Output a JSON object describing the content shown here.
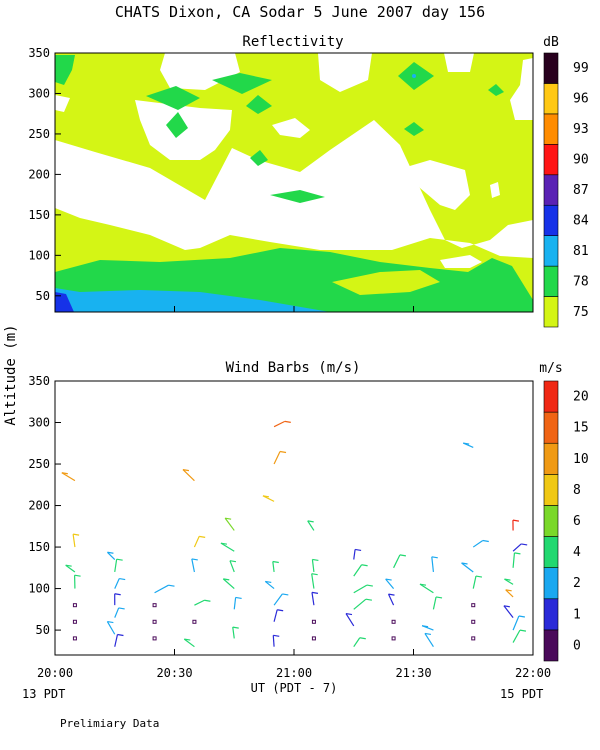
{
  "title": "CHATS Dixon, CA  Sodar   5 June 2007  day 156",
  "ylabel": "Altitude (m)",
  "xlabel": "UT  (PDT - 7)",
  "date_left": "13 PDT",
  "date_right": "15 PDT",
  "footer": "Prelimiary Data",
  "colors": {
    "r75": "#d4f515",
    "r78": "#22d84a",
    "r81": "#18b2f0",
    "r84": "#1632e8",
    "r87": "#5a22b4",
    "r90": "#ff1414",
    "r93": "#ff8c00",
    "r96": "#ffc814",
    "r99": "#28001e",
    "w0": "#4a0a5a",
    "w1": "#2a2ad8",
    "w2": "#1aa8f0",
    "w4": "#22d870",
    "w6": "#7ad82a",
    "w8": "#f0c814",
    "w10": "#f09a14",
    "w15": "#f06414",
    "w20": "#f02814"
  },
  "chart_data": [
    {
      "type": "heatmap",
      "title": "Reflectivity",
      "colorbar_label": "dB",
      "colorbar_ticks": [
        "75",
        "78",
        "81",
        "84",
        "87",
        "90",
        "93",
        "96",
        "99"
      ],
      "y_ticks": [
        "50",
        "100",
        "150",
        "200",
        "250",
        "300",
        "350"
      ],
      "ylim": [
        30,
        350
      ],
      "xlim": [
        "20:00",
        "22:00"
      ]
    },
    {
      "type": "scatter",
      "title": "Wind Barbs (m/s)",
      "colorbar_label": "m/s",
      "colorbar_ticks": [
        "0",
        "1",
        "2",
        "4",
        "6",
        "8",
        "10",
        "15",
        "20"
      ],
      "y_ticks": [
        "50",
        "100",
        "150",
        "200",
        "250",
        "300",
        "350"
      ],
      "x_ticks": [
        "20:00",
        "20:30",
        "21:00",
        "21:30",
        "22:00"
      ],
      "ylim": [
        20,
        350
      ],
      "xlim": [
        "20:00",
        "22:00"
      ],
      "columns": [
        {
          "t": "20:05",
          "levels": [
            {
              "h": 40,
              "c": "w0"
            },
            {
              "h": 60,
              "c": "w0"
            },
            {
              "h": 80,
              "c": "w0"
            },
            {
              "h": 100,
              "c": "w4"
            },
            {
              "h": 120,
              "c": "w4"
            },
            {
              "h": 150,
              "c": "w8"
            },
            {
              "h": 230,
              "c": "w10"
            }
          ]
        },
        {
          "t": "20:15",
          "levels": [
            {
              "h": 30,
              "c": "w1"
            },
            {
              "h": 45,
              "c": "w2"
            },
            {
              "h": 65,
              "c": "w2"
            },
            {
              "h": 80,
              "c": "w1"
            },
            {
              "h": 100,
              "c": "w2"
            },
            {
              "h": 120,
              "c": "w4"
            },
            {
              "h": 135,
              "c": "w2"
            }
          ]
        },
        {
          "t": "20:25",
          "levels": [
            {
              "h": 40,
              "c": "w0"
            },
            {
              "h": 60,
              "c": "w0"
            },
            {
              "h": 80,
              "c": "w0"
            },
            {
              "h": 95,
              "c": "w2"
            }
          ]
        },
        {
          "t": "20:35",
          "levels": [
            {
              "h": 30,
              "c": "w4"
            },
            {
              "h": 60,
              "c": "w0"
            },
            {
              "h": 80,
              "c": "w4"
            },
            {
              "h": 120,
              "c": "w2"
            },
            {
              "h": 150,
              "c": "w8"
            },
            {
              "h": 230,
              "c": "w10"
            }
          ]
        },
        {
          "t": "20:45",
          "levels": [
            {
              "h": 40,
              "c": "w4"
            },
            {
              "h": 75,
              "c": "w2"
            },
            {
              "h": 100,
              "c": "w4"
            },
            {
              "h": 120,
              "c": "w4"
            },
            {
              "h": 145,
              "c": "w4"
            },
            {
              "h": 170,
              "c": "w6"
            }
          ]
        },
        {
          "t": "20:55",
          "levels": [
            {
              "h": 30,
              "c": "w1"
            },
            {
              "h": 60,
              "c": "w1"
            },
            {
              "h": 80,
              "c": "w2"
            },
            {
              "h": 100,
              "c": "w2"
            },
            {
              "h": 120,
              "c": "w4"
            },
            {
              "h": 205,
              "c": "w8"
            },
            {
              "h": 250,
              "c": "w10"
            },
            {
              "h": 295,
              "c": "w15"
            }
          ]
        },
        {
          "t": "21:05",
          "levels": [
            {
              "h": 40,
              "c": "w0"
            },
            {
              "h": 60,
              "c": "w0"
            },
            {
              "h": 80,
              "c": "w1"
            },
            {
              "h": 100,
              "c": "w4"
            },
            {
              "h": 120,
              "c": "w4"
            },
            {
              "h": 170,
              "c": "w4"
            }
          ]
        },
        {
          "t": "21:15",
          "levels": [
            {
              "h": 30,
              "c": "w4"
            },
            {
              "h": 55,
              "c": "w1"
            },
            {
              "h": 75,
              "c": "w4"
            },
            {
              "h": 95,
              "c": "w4"
            },
            {
              "h": 115,
              "c": "w4"
            },
            {
              "h": 135,
              "c": "w1"
            }
          ]
        },
        {
          "t": "21:25",
          "levels": [
            {
              "h": 40,
              "c": "w0"
            },
            {
              "h": 60,
              "c": "w0"
            },
            {
              "h": 80,
              "c": "w1"
            },
            {
              "h": 100,
              "c": "w2"
            },
            {
              "h": 125,
              "c": "w4"
            }
          ]
        },
        {
          "t": "21:35",
          "levels": [
            {
              "h": 30,
              "c": "w2"
            },
            {
              "h": 50,
              "c": "w2"
            },
            {
              "h": 75,
              "c": "w4"
            },
            {
              "h": 95,
              "c": "w4"
            },
            {
              "h": 120,
              "c": "w2"
            }
          ]
        },
        {
          "t": "21:45",
          "levels": [
            {
              "h": 40,
              "c": "w0"
            },
            {
              "h": 60,
              "c": "w0"
            },
            {
              "h": 80,
              "c": "w0"
            },
            {
              "h": 100,
              "c": "w4"
            },
            {
              "h": 120,
              "c": "w2"
            },
            {
              "h": 150,
              "c": "w2"
            },
            {
              "h": 270,
              "c": "w2"
            }
          ]
        },
        {
          "t": "21:55",
          "levels": [
            {
              "h": 35,
              "c": "w4"
            },
            {
              "h": 50,
              "c": "w2"
            },
            {
              "h": 65,
              "c": "w1"
            },
            {
              "h": 90,
              "c": "w10"
            },
            {
              "h": 105,
              "c": "w4"
            },
            {
              "h": 125,
              "c": "w4"
            },
            {
              "h": 145,
              "c": "w1"
            },
            {
              "h": 170,
              "c": "w20"
            }
          ]
        }
      ]
    }
  ]
}
